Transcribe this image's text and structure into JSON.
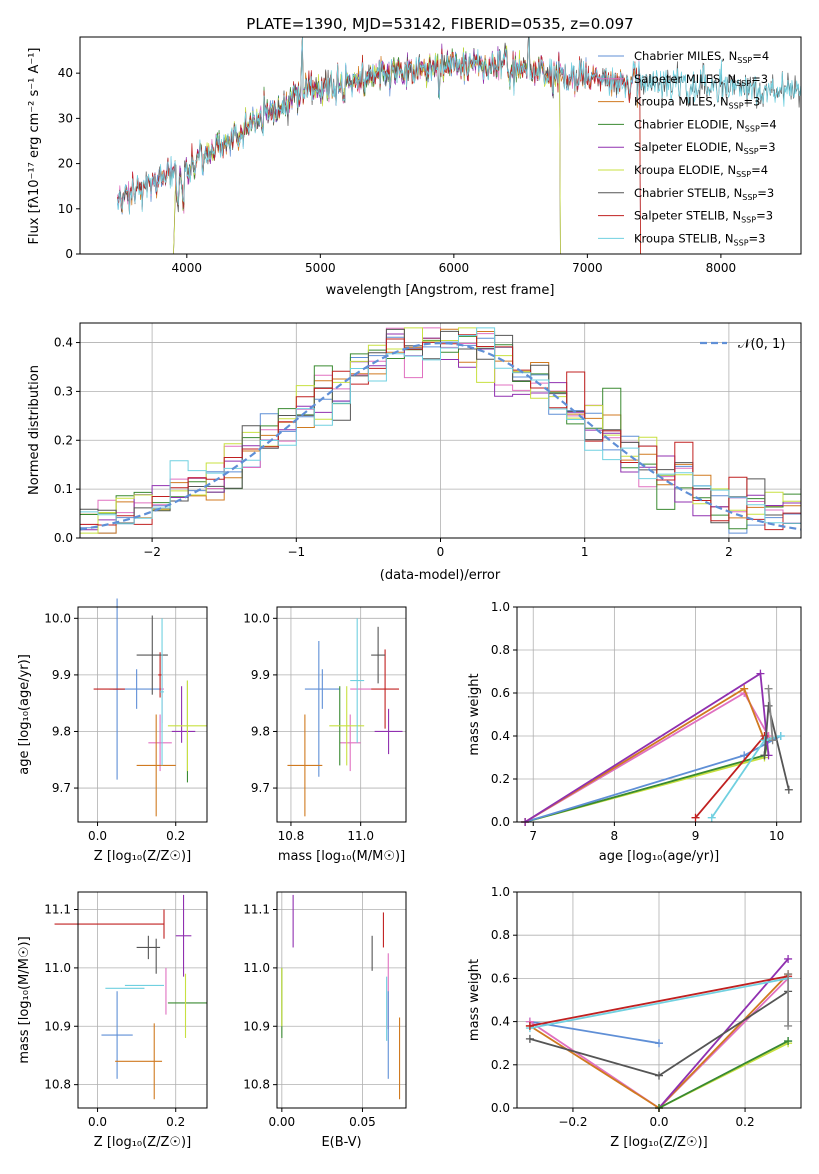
{
  "chart_data": [
    {
      "id": "spectrum",
      "type": "line",
      "title": "PLATE=1390, MJD=53142, FIBERID=0535, z=0.097",
      "xlabel": "wavelength [Angstrom, rest frame]",
      "ylabel": "Flux [fλ10⁻¹⁷ erg cm⁻² s⁻¹ A⁻¹]",
      "xlim": [
        3200,
        8600
      ],
      "ylim": [
        0,
        48
      ],
      "xticks": [
        "4000",
        "5000",
        "6000",
        "7000",
        "8000"
      ],
      "yticks": [
        "0",
        "10",
        "20",
        "30",
        "40"
      ],
      "legend_position": "top-right",
      "series": [
        {
          "name": "Chabrier MILES, N_SSP=4",
          "color": "#5f8fd6",
          "range": [
            3480,
            7400
          ]
        },
        {
          "name": "Salpeter MILES, N_SSP=3",
          "color": "#e070c0",
          "range": [
            3480,
            7400
          ]
        },
        {
          "name": "Kroupa MILES, N_SSP=3",
          "color": "#d07a20",
          "range": [
            3500,
            7400
          ]
        },
        {
          "name": "Chabrier ELODIE, N_SSP=4",
          "color": "#3a8a30",
          "range": [
            3900,
            6800
          ]
        },
        {
          "name": "Salpeter ELODIE, N_SSP=3",
          "color": "#9030b0",
          "range": [
            3900,
            6800
          ]
        },
        {
          "name": "Kroupa ELODIE, N_SSP=4",
          "color": "#c8e040",
          "range": [
            3900,
            6800
          ]
        },
        {
          "name": "Chabrier STELIB, N_SSP=3",
          "color": "#555555",
          "range": [
            3480,
            8600
          ]
        },
        {
          "name": "Salpeter STELIB, N_SSP=3",
          "color": "#c02020",
          "range": [
            3480,
            7400
          ]
        },
        {
          "name": "Kroupa STELIB, N_SSP=3",
          "color": "#70d0e0",
          "range": [
            3480,
            8600
          ]
        }
      ],
      "continuum": {
        "x": [
          3480,
          3700,
          3850,
          4000,
          4200,
          4400,
          4700,
          4900,
          5000,
          5200,
          5500,
          5800,
          6000,
          6300,
          6500,
          6700,
          7000,
          7400,
          8000,
          8600
        ],
        "y": [
          12,
          15,
          17,
          19,
          23,
          27,
          33,
          36,
          37,
          38,
          40,
          41,
          42,
          42,
          41,
          40,
          39,
          38,
          37,
          36
        ]
      }
    },
    {
      "id": "residuals",
      "type": "histogram",
      "xlabel": "(data-model)/error",
      "ylabel": "Normed distribution",
      "xlim": [
        -2.5,
        2.5
      ],
      "ylim": [
        0,
        0.44
      ],
      "xticks": [
        "−2",
        "−1",
        "0",
        "1",
        "2"
      ],
      "yticks": [
        "0.0",
        "0.1",
        "0.2",
        "0.3",
        "0.4"
      ],
      "bins": 40,
      "reference": {
        "label": "𝒩(0, 1)",
        "color": "#5f8fd6"
      },
      "legend_position": "top-right"
    },
    {
      "id": "z-age",
      "type": "scatter",
      "xlabel": "Z [log₁₀(Z/Z☉)]",
      "ylabel": "age  [log₁₀(age/yr)]",
      "xlim": [
        -0.05,
        0.28
      ],
      "ylim": [
        9.64,
        10.02
      ],
      "xticks": [
        "0.0",
        "0.2"
      ],
      "yticks": [
        "9.7",
        "9.8",
        "9.9",
        "10.0"
      ],
      "points": [
        {
          "x": 0.1,
          "y": 9.875,
          "ex": 0.06,
          "ey": 0.035,
          "color": "#5f8fd6"
        },
        {
          "x": 0.05,
          "y": 9.875,
          "ex": 0.02,
          "ey": 0.16,
          "color": "#5f8fd6"
        },
        {
          "x": 0.165,
          "y": 9.875,
          "ex": 0.005,
          "ey": 0.06,
          "color": "#e070c0"
        },
        {
          "x": 0.16,
          "y": 9.78,
          "ex": 0.03,
          "ey": 0.05,
          "color": "#e070c0"
        },
        {
          "x": 0.15,
          "y": 9.74,
          "ex": 0.05,
          "ey": 0.09,
          "color": "#d07a20"
        },
        {
          "x": 0.03,
          "y": 9.875,
          "ex": 0.04,
          "ey": 0.0,
          "color": "#c02020"
        },
        {
          "x": 0.16,
          "y": 9.9,
          "ex": 0.005,
          "ey": 0.04,
          "color": "#c02020"
        },
        {
          "x": 0.14,
          "y": 9.935,
          "ex": 0.04,
          "ey": 0.07,
          "color": "#555555"
        },
        {
          "x": 0.22,
          "y": 9.8,
          "ex": 0.03,
          "ey": 0.0,
          "color": "#9030b0"
        },
        {
          "x": 0.215,
          "y": 9.83,
          "ex": 0.0,
          "ey": 0.05,
          "color": "#9030b0"
        },
        {
          "x": 0.23,
          "y": 9.8,
          "ex": 0.0,
          "ey": 0.09,
          "color": "#3a8a30"
        },
        {
          "x": 0.23,
          "y": 9.81,
          "ex": 0.05,
          "ey": 0.08,
          "color": "#c8e040"
        },
        {
          "x": 0.165,
          "y": 9.87,
          "ex": 0.005,
          "ey": 0.13,
          "color": "#70d0e0"
        }
      ]
    },
    {
      "id": "mass-age",
      "type": "scatter",
      "xlabel": "mass [log₁₀(M/M☉)]",
      "ylabel": "",
      "xlim": [
        10.76,
        11.13
      ],
      "ylim": [
        9.64,
        10.02
      ],
      "xticks": [
        "10.8",
        "11.0"
      ],
      "yticks": [
        "9.7",
        "9.8",
        "9.9",
        "10.0"
      ],
      "points": [
        {
          "x": 10.89,
          "y": 9.875,
          "ex": 0.05,
          "ey": 0.035,
          "color": "#5f8fd6"
        },
        {
          "x": 10.88,
          "y": 9.84,
          "ex": 0.0,
          "ey": 0.12,
          "color": "#5f8fd6"
        },
        {
          "x": 11.0,
          "y": 9.875,
          "ex": 0.03,
          "ey": 0.0,
          "color": "#e070c0"
        },
        {
          "x": 10.97,
          "y": 9.78,
          "ex": 0.03,
          "ey": 0.05,
          "color": "#e070c0"
        },
        {
          "x": 10.84,
          "y": 9.74,
          "ex": 0.05,
          "ey": 0.09,
          "color": "#d07a20"
        },
        {
          "x": 11.07,
          "y": 9.875,
          "ex": 0.04,
          "ey": 0.07,
          "color": "#c02020"
        },
        {
          "x": 11.05,
          "y": 9.935,
          "ex": 0.02,
          "ey": 0.05,
          "color": "#555555"
        },
        {
          "x": 11.08,
          "y": 9.8,
          "ex": 0.04,
          "ey": 0.04,
          "color": "#9030b0"
        },
        {
          "x": 10.94,
          "y": 9.81,
          "ex": 0.0,
          "ey": 0.07,
          "color": "#3a8a30"
        },
        {
          "x": 10.96,
          "y": 9.81,
          "ex": 0.05,
          "ey": 0.07,
          "color": "#c8e040"
        },
        {
          "x": 10.99,
          "y": 9.89,
          "ex": 0.02,
          "ey": 0.11,
          "color": "#70d0e0"
        }
      ]
    },
    {
      "id": "age-weight",
      "type": "line",
      "xlabel": "age  [log₁₀(age/yr)]",
      "ylabel": "mass weight",
      "xlim": [
        6.8,
        10.3
      ],
      "ylim": [
        0,
        1.0
      ],
      "xticks": [
        "7",
        "8",
        "9",
        "10"
      ],
      "yticks": [
        "0.0",
        "0.2",
        "0.4",
        "0.6",
        "0.8",
        "1.0"
      ],
      "series": [
        {
          "color": "#c8e040",
          "x": [
            6.9,
            9.85,
            9.9
          ],
          "y": [
            0.0,
            0.3,
            0.4
          ]
        },
        {
          "color": "#3a8a30",
          "x": [
            6.9,
            9.85,
            9.9
          ],
          "y": [
            0.0,
            0.31,
            0.39
          ]
        },
        {
          "color": "#5f8fd6",
          "x": [
            6.9,
            9.6,
            10.05
          ],
          "y": [
            0.0,
            0.31,
            0.4
          ]
        },
        {
          "color": "#e070c0",
          "x": [
            6.9,
            9.6,
            9.9
          ],
          "y": [
            0.0,
            0.6,
            0.4
          ]
        },
        {
          "color": "#d07a20",
          "x": [
            6.9,
            9.6,
            9.85
          ],
          "y": [
            0.0,
            0.62,
            0.38
          ]
        },
        {
          "color": "#9030b0",
          "x": [
            6.9,
            9.8,
            9.9
          ],
          "y": [
            0.0,
            0.69,
            0.31
          ]
        },
        {
          "color": "#c02020",
          "x": [
            9.0,
            9.85
          ],
          "y": [
            0.02,
            0.4
          ]
        },
        {
          "color": "#70d0e0",
          "x": [
            9.2,
            9.85,
            10.05
          ],
          "y": [
            0.02,
            0.38,
            0.4
          ]
        },
        {
          "color": "#555555",
          "x": [
            9.85,
            9.9,
            10.15
          ],
          "y": [
            0.31,
            0.54,
            0.15
          ]
        },
        {
          "color": "#888888",
          "x": [
            9.9,
            9.95
          ],
          "y": [
            0.62,
            0.38
          ]
        }
      ]
    },
    {
      "id": "z-mass",
      "type": "scatter",
      "xlabel": "Z [log₁₀(Z/Z☉)]",
      "ylabel": "mass [log₁₀(M/M☉)]",
      "xlim": [
        -0.05,
        0.28
      ],
      "ylim": [
        10.76,
        11.13
      ],
      "xticks": [
        "0.0",
        "0.2"
      ],
      "yticks": [
        "10.8",
        "10.9",
        "11.0",
        "11.1"
      ],
      "points": [
        {
          "x": 0.03,
          "y": 11.075,
          "ex": 0.14,
          "ey": 0.0,
          "color": "#c02020"
        },
        {
          "x": 0.17,
          "y": 11.075,
          "ex": 0.0,
          "ey": 0.025,
          "color": "#c02020"
        },
        {
          "x": 0.22,
          "y": 11.055,
          "ex": 0.02,
          "ey": 0.07,
          "color": "#9030b0"
        },
        {
          "x": 0.13,
          "y": 11.035,
          "ex": 0.03,
          "ey": 0.02,
          "color": "#555555"
        },
        {
          "x": 0.15,
          "y": 11.02,
          "ex": 0.0,
          "ey": 0.03,
          "color": "#555555"
        },
        {
          "x": 0.12,
          "y": 10.97,
          "ex": 0.05,
          "ey": 0.0,
          "color": "#70d0e0"
        },
        {
          "x": 0.07,
          "y": 10.965,
          "ex": 0.05,
          "ey": 0.0,
          "color": "#70d0e0"
        },
        {
          "x": 0.175,
          "y": 10.96,
          "ex": 0.0,
          "ey": 0.04,
          "color": "#e070c0"
        },
        {
          "x": 0.23,
          "y": 10.94,
          "ex": 0.05,
          "ey": 0.0,
          "color": "#3a8a30"
        },
        {
          "x": 0.225,
          "y": 10.935,
          "ex": 0.0,
          "ey": 0.055,
          "color": "#c8e040"
        },
        {
          "x": 0.05,
          "y": 10.885,
          "ex": 0.04,
          "ey": 0.075,
          "color": "#5f8fd6"
        },
        {
          "x": 0.105,
          "y": 10.84,
          "ex": 0.06,
          "ey": 0.0,
          "color": "#d07a20"
        },
        {
          "x": 0.145,
          "y": 10.84,
          "ex": 0.0,
          "ey": 0.065,
          "color": "#d07a20"
        }
      ]
    },
    {
      "id": "ebv-mass",
      "type": "scatter",
      "xlabel": "E(B-V)",
      "ylabel": "",
      "xlim": [
        -0.003,
        0.077
      ],
      "ylim": [
        10.76,
        11.13
      ],
      "xticks": [
        "0.00",
        "0.05"
      ],
      "yticks": [
        "10.8",
        "10.9",
        "11.0",
        "11.1"
      ],
      "points": [
        {
          "x": 0.007,
          "y": 11.08,
          "ex": 0.0,
          "ey": 0.045,
          "color": "#9030b0"
        },
        {
          "x": 0.0,
          "y": 10.94,
          "ex": 0.0,
          "ey": 0.06,
          "color": "#3a8a30"
        },
        {
          "x": 0.0,
          "y": 10.95,
          "ex": 0.0,
          "ey": 0.05,
          "color": "#c8e040"
        },
        {
          "x": 0.056,
          "y": 11.025,
          "ex": 0.0,
          "ey": 0.03,
          "color": "#555555"
        },
        {
          "x": 0.063,
          "y": 11.065,
          "ex": 0.0,
          "ey": 0.03,
          "color": "#c02020"
        },
        {
          "x": 0.066,
          "y": 10.96,
          "ex": 0.0,
          "ey": 0.065,
          "color": "#e070c0"
        },
        {
          "x": 0.065,
          "y": 10.93,
          "ex": 0.0,
          "ey": 0.055,
          "color": "#70d0e0"
        },
        {
          "x": 0.066,
          "y": 10.885,
          "ex": 0.0,
          "ey": 0.075,
          "color": "#5f8fd6"
        },
        {
          "x": 0.073,
          "y": 10.845,
          "ex": 0.0,
          "ey": 0.07,
          "color": "#d07a20"
        }
      ]
    },
    {
      "id": "z-weight",
      "type": "line",
      "xlabel": "Z [log₁₀(Z/Z☉)]",
      "ylabel": "mass weight",
      "xlim": [
        -0.33,
        0.33
      ],
      "ylim": [
        0,
        1.0
      ],
      "xticks": [
        "−0.2",
        "0.0",
        "0.2"
      ],
      "yticks": [
        "0.0",
        "0.2",
        "0.4",
        "0.6",
        "0.8",
        "1.0"
      ],
      "series": [
        {
          "color": "#5f8fd6",
          "x": [
            -0.3,
            0.0
          ],
          "y": [
            0.4,
            0.3
          ]
        },
        {
          "color": "#5f8fd6",
          "x": [
            0.0,
            0.3
          ],
          "y": [
            0.0,
            0.31
          ]
        },
        {
          "color": "#e070c0",
          "x": [
            -0.3,
            0.0,
            0.3
          ],
          "y": [
            0.4,
            0.0,
            0.6
          ]
        },
        {
          "color": "#d07a20",
          "x": [
            -0.3,
            0.0,
            0.3
          ],
          "y": [
            0.38,
            0.0,
            0.62
          ]
        },
        {
          "color": "#9030b0",
          "x": [
            0.0,
            0.3
          ],
          "y": [
            0.0,
            0.69
          ]
        },
        {
          "color": "#c8e040",
          "x": [
            0.0,
            0.3
          ],
          "y": [
            0.0,
            0.3
          ]
        },
        {
          "color": "#3a8a30",
          "x": [
            0.0,
            0.3
          ],
          "y": [
            0.0,
            0.31
          ]
        },
        {
          "color": "#555555",
          "x": [
            -0.3,
            0.0,
            0.3
          ],
          "y": [
            0.32,
            0.15,
            0.54
          ]
        },
        {
          "color": "#70d0e0",
          "x": [
            -0.3,
            0.3
          ],
          "y": [
            0.37,
            0.6
          ]
        },
        {
          "color": "#c02020",
          "x": [
            -0.3,
            0.3
          ],
          "y": [
            0.38,
            0.61
          ]
        },
        {
          "color": "#888888",
          "x": [
            0.3,
            0.3
          ],
          "y": [
            0.38,
            0.62
          ]
        }
      ]
    }
  ]
}
